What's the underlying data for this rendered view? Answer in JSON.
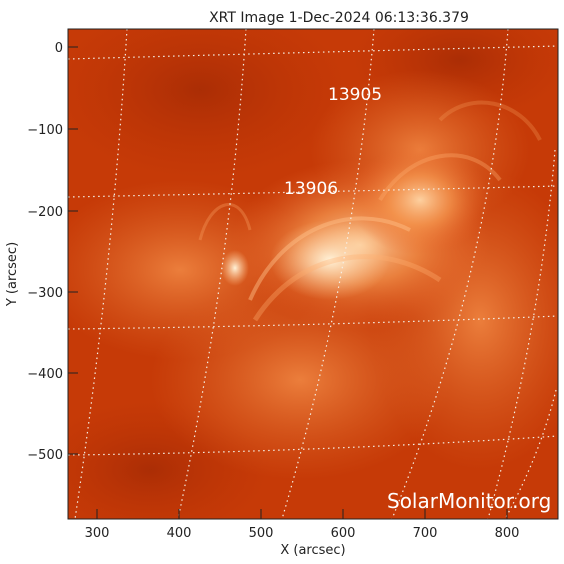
{
  "title": "XRT Image   1-Dec-2024 06:13:36.379",
  "x_axis": {
    "label": "X (arcsec)",
    "ticks": [
      "300",
      "400",
      "500",
      "600",
      "700",
      "800"
    ]
  },
  "y_axis": {
    "label": "Y (arcsec)",
    "ticks": [
      "0",
      "−100",
      "−200",
      "−300",
      "−400",
      "−500"
    ]
  },
  "regions": [
    {
      "number": "13905"
    },
    {
      "number": "13906"
    }
  ],
  "watermark": "SolarMonitor.org",
  "colors": {
    "base": "#c83a06",
    "bright": "#ffd0a0",
    "grid": "#f5f0e6"
  }
}
